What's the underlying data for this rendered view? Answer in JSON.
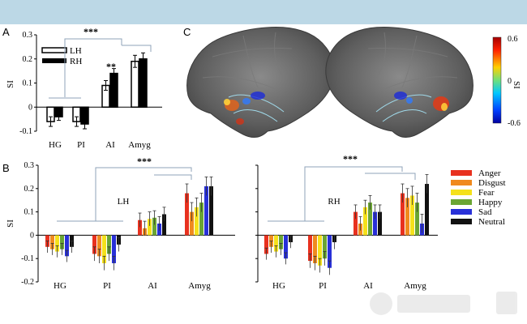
{
  "chart_data": [
    {
      "panel": "A",
      "type": "bar",
      "ylabel": "SI",
      "ylim": [
        -0.1,
        0.3
      ],
      "yticks": [
        "-0.1",
        "0",
        "0.1",
        "0.2",
        "0.3"
      ],
      "categories": [
        "HG",
        "PI",
        "AI",
        "Amyg"
      ],
      "series": [
        {
          "name": "LH",
          "color": "#ffffff",
          "values": [
            -0.06,
            -0.06,
            0.09,
            0.19
          ],
          "errors": [
            0.02,
            0.02,
            0.02,
            0.025
          ]
        },
        {
          "name": "RH",
          "color": "#000000",
          "values": [
            -0.04,
            -0.07,
            0.14,
            0.2
          ],
          "errors": [
            0.015,
            0.02,
            0.02,
            0.025
          ]
        }
      ],
      "annotations": [
        "***",
        "**"
      ]
    },
    {
      "panel": "C",
      "type": "brain-map",
      "colorbar_label": "SI",
      "colorbar_ticks": [
        "0.6",
        "0",
        "-0.6"
      ],
      "colors": [
        "#d7191c",
        "#fdae61",
        "#ffffbf",
        "#abdda4",
        "#2b83ba"
      ]
    },
    {
      "panel": "B",
      "hemisphere_left": "LH",
      "hemisphere_right": "RH",
      "type": "bar",
      "ylabel": "SI",
      "ylim": [
        -0.2,
        0.3
      ],
      "yticks": [
        "-0.2",
        "-0.1",
        "0",
        "0.1",
        "0.2",
        "0.3"
      ],
      "categories": [
        "HG",
        "PI",
        "AI",
        "Amyg"
      ],
      "legend": [
        {
          "name": "Anger",
          "color": "#e8311f"
        },
        {
          "name": "Disgust",
          "color": "#f08a1e"
        },
        {
          "name": "Fear",
          "color": "#f5e11b"
        },
        {
          "name": "Happy",
          "color": "#6aa533"
        },
        {
          "name": "Sad",
          "color": "#2830d8"
        },
        {
          "name": "Neutral",
          "color": "#111111"
        }
      ],
      "series_LH": [
        {
          "name": "Anger",
          "values": [
            -0.05,
            -0.08,
            0.065,
            0.18
          ]
        },
        {
          "name": "Disgust",
          "values": [
            -0.06,
            -0.09,
            0.03,
            0.1
          ]
        },
        {
          "name": "Fear",
          "values": [
            -0.07,
            -0.12,
            0.07,
            0.12
          ]
        },
        {
          "name": "Happy",
          "values": [
            -0.06,
            -0.08,
            0.075,
            0.14
          ]
        },
        {
          "name": "Sad",
          "values": [
            -0.09,
            -0.12,
            0.05,
            0.21
          ]
        },
        {
          "name": "Neutral",
          "values": [
            -0.05,
            -0.04,
            0.09,
            0.21
          ]
        }
      ],
      "series_RH": [
        {
          "name": "Anger",
          "values": [
            -0.08,
            -0.11,
            0.1,
            0.18
          ]
        },
        {
          "name": "Disgust",
          "values": [
            -0.05,
            -0.12,
            0.05,
            0.16
          ]
        },
        {
          "name": "Fear",
          "values": [
            -0.07,
            -0.13,
            0.12,
            0.17
          ]
        },
        {
          "name": "Happy",
          "values": [
            -0.06,
            -0.1,
            0.14,
            0.14
          ]
        },
        {
          "name": "Sad",
          "values": [
            -0.1,
            -0.14,
            0.1,
            0.05
          ]
        },
        {
          "name": "Neutral",
          "values": [
            -0.03,
            -0.03,
            0.1,
            0.22
          ]
        }
      ],
      "annotations": [
        "***",
        "***"
      ]
    }
  ]
}
